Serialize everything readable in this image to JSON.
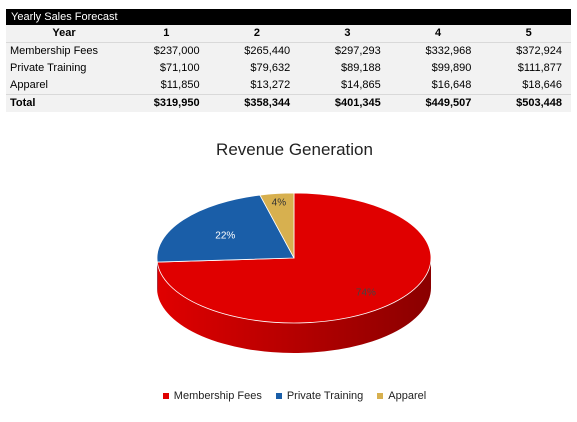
{
  "table": {
    "title": "Yearly Sales Forecast",
    "header": [
      "Year",
      "1",
      "2",
      "3",
      "4",
      "5"
    ],
    "rows": [
      {
        "label": "Membership Fees",
        "values": [
          "$237,000",
          "$265,440",
          "$297,293",
          "$332,968",
          "$372,924"
        ]
      },
      {
        "label": "Private Training",
        "values": [
          "$71,100",
          "$79,632",
          "$89,188",
          "$99,890",
          "$111,877"
        ]
      },
      {
        "label": "Apparel",
        "values": [
          "$11,850",
          "$13,272",
          "$14,865",
          "$16,648",
          "$18,646"
        ]
      }
    ],
    "total": {
      "label": "Total",
      "values": [
        "$319,950",
        "$358,344",
        "$401,345",
        "$449,507",
        "$503,448"
      ]
    }
  },
  "chart_data": {
    "type": "pie",
    "title": "Revenue Generation",
    "three_d": true,
    "legend_position": "bottom",
    "slices": [
      {
        "name": "Membership Fees",
        "value": 74,
        "label": "74%",
        "color": "#e00000",
        "side_color": "#8a0000",
        "label_color": "#444444"
      },
      {
        "name": "Private Training",
        "value": 22,
        "label": "22%",
        "color": "#1a5ea8",
        "side_color": "#0e3a6b",
        "label_color": "#ffffff"
      },
      {
        "name": "Apparel",
        "value": 4,
        "label": "4%",
        "color": "#d7b04f",
        "side_color": "#8d6f24",
        "label_color": "#333333"
      }
    ]
  }
}
